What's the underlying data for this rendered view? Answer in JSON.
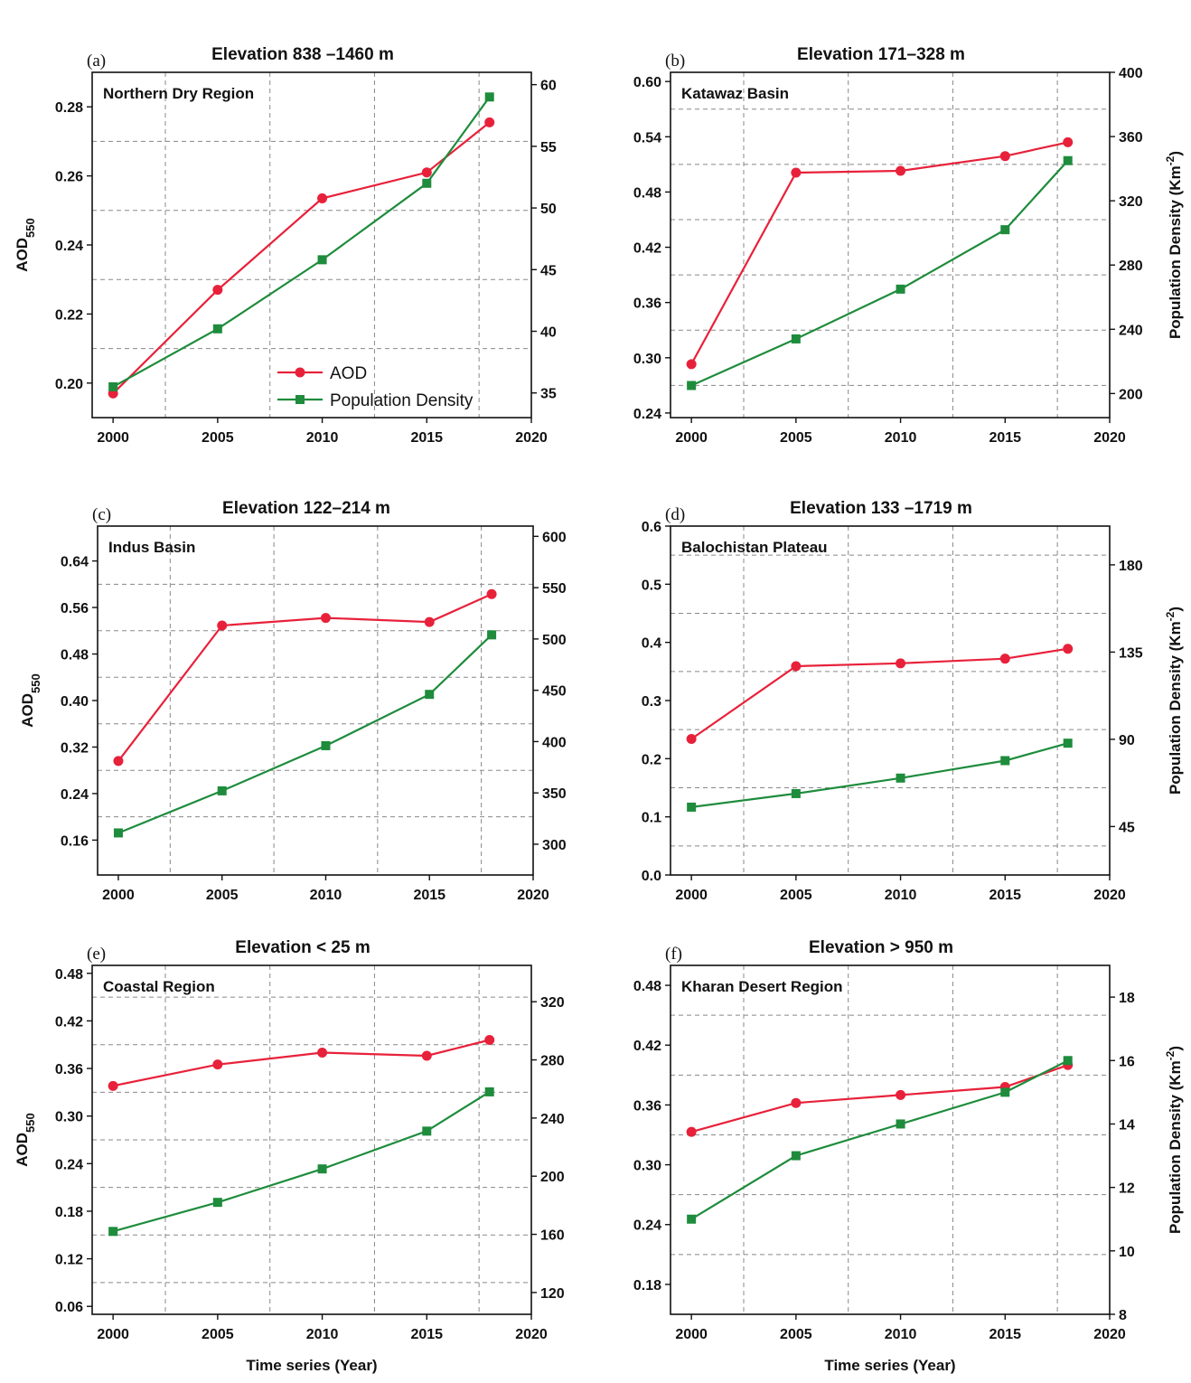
{
  "colors": {
    "aod": "#e8213a",
    "population": "#1e8c3c",
    "grid": "#888888",
    "axis": "#111111"
  },
  "legend": {
    "aod": "AOD",
    "population": "Population Density"
  },
  "chart_data": [
    {
      "type": "line",
      "panel_label": "(a)",
      "title": "Elevation 838 –1460 m",
      "region": "Northern Dry Region",
      "x": [
        2000,
        2005,
        2010,
        2015,
        2018
      ],
      "xlim": [
        1999,
        2020
      ],
      "xticks": [
        2000,
        2005,
        2010,
        2015,
        2020
      ],
      "xtick_labels": [
        "2000",
        "2005",
        "2010",
        "2015",
        "2020"
      ],
      "ylabel": "AOD550",
      "ylabel_main": "AOD",
      "ylabel_sub": "550",
      "ylim": [
        0.19,
        0.29
      ],
      "yticks": [
        0.2,
        0.22,
        0.24,
        0.26,
        0.28
      ],
      "ytick_labels": [
        "0.20",
        "0.22",
        "0.24",
        "0.26",
        "0.28"
      ],
      "y2label": "",
      "y2label_main": "",
      "y2label_exp": "",
      "y2lim": [
        33,
        61
      ],
      "y2ticks": [
        35,
        40,
        45,
        50,
        55,
        60
      ],
      "y2tick_labels": [
        "35",
        "40",
        "45",
        "50",
        "55",
        "60"
      ],
      "xlabel": "",
      "show_legend": true,
      "series": [
        {
          "name": "AOD",
          "axis": "left",
          "marker": "circle",
          "values": [
            0.197,
            0.227,
            0.2535,
            0.261,
            0.2755
          ]
        },
        {
          "name": "Population Density",
          "axis": "right",
          "marker": "square",
          "values": [
            35.5,
            40.2,
            45.8,
            52.0,
            59.0
          ]
        }
      ]
    },
    {
      "type": "line",
      "panel_label": "(b)",
      "title": "Elevation 171–328 m",
      "region": "Katawaz Basin",
      "x": [
        2000,
        2005,
        2010,
        2015,
        2018
      ],
      "xlim": [
        1999,
        2020
      ],
      "xticks": [
        2000,
        2005,
        2010,
        2015,
        2020
      ],
      "xtick_labels": [
        "2000",
        "2005",
        "2010",
        "2015",
        "2020"
      ],
      "ylabel": "",
      "ylabel_main": "",
      "ylabel_sub": "",
      "ylim": [
        0.235,
        0.61
      ],
      "yticks": [
        0.24,
        0.3,
        0.36,
        0.42,
        0.48,
        0.54,
        0.6
      ],
      "ytick_labels": [
        "0.24",
        "0.30",
        "0.36",
        "0.42",
        "0.48",
        "0.54",
        "0.60"
      ],
      "y2label": "Population Density (Km-2)",
      "y2label_main": "Population Density (Km",
      "y2label_exp": "-2",
      "y2lim": [
        185,
        400
      ],
      "y2ticks": [
        200,
        240,
        280,
        320,
        360,
        400
      ],
      "y2tick_labels": [
        "200",
        "240",
        "280",
        "320",
        "360",
        "400"
      ],
      "xlabel": "",
      "show_legend": false,
      "series": [
        {
          "name": "AOD",
          "axis": "left",
          "marker": "circle",
          "values": [
            0.293,
            0.501,
            0.503,
            0.519,
            0.534
          ]
        },
        {
          "name": "Population Density",
          "axis": "right",
          "marker": "square",
          "values": [
            205,
            234,
            265,
            302,
            345
          ]
        }
      ]
    },
    {
      "type": "line",
      "panel_label": "(c)",
      "title": "Elevation 122–214 m",
      "region": "Indus Basin",
      "x": [
        2000,
        2005,
        2010,
        2015,
        2018
      ],
      "xlim": [
        1999,
        2020
      ],
      "xticks": [
        2000,
        2005,
        2010,
        2015,
        2020
      ],
      "xtick_labels": [
        "2000",
        "2005",
        "2010",
        "2015",
        "2020"
      ],
      "ylabel": "AOD550",
      "ylabel_main": "AOD",
      "ylabel_sub": "550",
      "ylim": [
        0.1,
        0.7
      ],
      "yticks": [
        0.16,
        0.24,
        0.32,
        0.4,
        0.48,
        0.56,
        0.64
      ],
      "ytick_labels": [
        "0.16",
        "0.24",
        "0.32",
        "0.40",
        "0.48",
        "0.56",
        "0.64"
      ],
      "y2label": "",
      "y2label_main": "",
      "y2label_exp": "",
      "y2lim": [
        270,
        610
      ],
      "y2ticks": [
        300,
        350,
        400,
        450,
        500,
        550,
        600
      ],
      "y2tick_labels": [
        "300",
        "350",
        "400",
        "450",
        "500",
        "550",
        "600"
      ],
      "xlabel": "",
      "show_legend": false,
      "series": [
        {
          "name": "AOD",
          "axis": "left",
          "marker": "circle",
          "values": [
            0.296,
            0.529,
            0.542,
            0.535,
            0.583
          ]
        },
        {
          "name": "Population Density",
          "axis": "right",
          "marker": "square",
          "values": [
            311,
            352,
            396,
            446,
            504
          ]
        }
      ]
    },
    {
      "type": "line",
      "panel_label": "(d)",
      "title": "Elevation 133 –1719 m",
      "region": "Balochistan Plateau",
      "x": [
        2000,
        2005,
        2010,
        2015,
        2018
      ],
      "xlim": [
        1999,
        2020
      ],
      "xticks": [
        2000,
        2005,
        2010,
        2015,
        2020
      ],
      "xtick_labels": [
        "2000",
        "2005",
        "2010",
        "2015",
        "2020"
      ],
      "ylabel": "",
      "ylabel_main": "",
      "ylabel_sub": "",
      "ylim": [
        0.0,
        0.6
      ],
      "yticks": [
        0.0,
        0.1,
        0.2,
        0.3,
        0.4,
        0.5,
        0.6
      ],
      "ytick_labels": [
        "0.0",
        "0.1",
        "0.2",
        "0.3",
        "0.4",
        "0.5",
        "0.6"
      ],
      "y2label": "Population Density (Km-2)",
      "y2label_main": "Population Density (Km",
      "y2label_exp": "-2",
      "y2lim": [
        20,
        200
      ],
      "y2ticks": [
        45,
        90,
        135,
        180
      ],
      "y2tick_labels": [
        "45",
        "90",
        "135",
        "180"
      ],
      "xlabel": "",
      "show_legend": false,
      "series": [
        {
          "name": "AOD",
          "axis": "left",
          "marker": "circle",
          "values": [
            0.234,
            0.359,
            0.364,
            0.372,
            0.389
          ]
        },
        {
          "name": "Population Density",
          "axis": "right",
          "marker": "square",
          "values": [
            55,
            62,
            70,
            79,
            88
          ]
        }
      ]
    },
    {
      "type": "line",
      "panel_label": "(e)",
      "title": "Elevation < 25 m",
      "region": "Coastal Region",
      "x": [
        2000,
        2005,
        2010,
        2015,
        2018
      ],
      "xlim": [
        1999,
        2020
      ],
      "xticks": [
        2000,
        2005,
        2010,
        2015,
        2020
      ],
      "xtick_labels": [
        "2000",
        "2005",
        "2010",
        "2015",
        "2020"
      ],
      "ylabel": "AOD550",
      "ylabel_main": "AOD",
      "ylabel_sub": "550",
      "ylim": [
        0.05,
        0.49
      ],
      "yticks": [
        0.06,
        0.12,
        0.18,
        0.24,
        0.3,
        0.36,
        0.42,
        0.48
      ],
      "ytick_labels": [
        "0.06",
        "0.12",
        "0.18",
        "0.24",
        "0.30",
        "0.36",
        "0.42",
        "0.48"
      ],
      "y2label": "",
      "y2label_main": "",
      "y2label_exp": "",
      "y2lim": [
        105,
        345
      ],
      "y2ticks": [
        120,
        160,
        200,
        240,
        280,
        320
      ],
      "y2tick_labels": [
        "120",
        "160",
        "200",
        "240",
        "280",
        "320"
      ],
      "xlabel": "Time series (Year)",
      "show_legend": false,
      "series": [
        {
          "name": "AOD",
          "axis": "left",
          "marker": "circle",
          "values": [
            0.338,
            0.365,
            0.38,
            0.376,
            0.396
          ]
        },
        {
          "name": "Population Density",
          "axis": "right",
          "marker": "square",
          "values": [
            162,
            182,
            205,
            231,
            258
          ]
        }
      ]
    },
    {
      "type": "line",
      "panel_label": "(f)",
      "title": "Elevation > 950 m",
      "region": "Kharan Desert Region",
      "x": [
        2000,
        2005,
        2010,
        2015,
        2018
      ],
      "xlim": [
        1999,
        2020
      ],
      "xticks": [
        2000,
        2005,
        2010,
        2015,
        2020
      ],
      "xtick_labels": [
        "2000",
        "2005",
        "2010",
        "2015",
        "2020"
      ],
      "ylabel": "",
      "ylabel_main": "",
      "ylabel_sub": "",
      "ylim": [
        0.15,
        0.5
      ],
      "yticks": [
        0.18,
        0.24,
        0.3,
        0.36,
        0.42,
        0.48
      ],
      "ytick_labels": [
        "0.18",
        "0.24",
        "0.30",
        "0.36",
        "0.42",
        "0.48"
      ],
      "y2label": "Population Density (Km-2)",
      "y2label_main": "Population Density (Km",
      "y2label_exp": "-2",
      "y2lim": [
        8,
        19
      ],
      "y2ticks": [
        8,
        10,
        12,
        14,
        16,
        18
      ],
      "y2tick_labels": [
        "8",
        "10",
        "12",
        "14",
        "16",
        "18"
      ],
      "xlabel": "Time series (Year)",
      "show_legend": false,
      "series": [
        {
          "name": "AOD",
          "axis": "left",
          "marker": "circle",
          "values": [
            0.333,
            0.362,
            0.37,
            0.378,
            0.4
          ]
        },
        {
          "name": "Population Density",
          "axis": "right",
          "marker": "square",
          "values": [
            11.0,
            13.0,
            14.0,
            15.0,
            16.0
          ]
        }
      ]
    }
  ]
}
